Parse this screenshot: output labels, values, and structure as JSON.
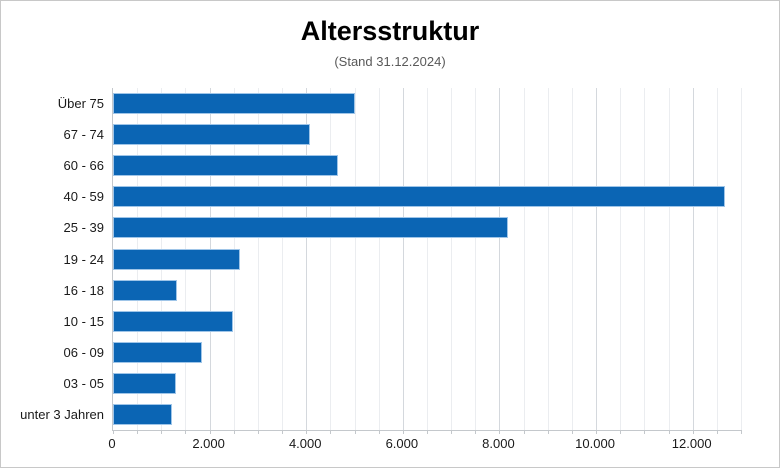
{
  "title": "Altersstruktur",
  "subtitle": "(Stand 31.12.2024)",
  "colors": {
    "bar": "#0b65b4",
    "bar_border": "#9fc5e8",
    "grid_minor": "#ebedf0",
    "grid_major": "#d4d8dd",
    "axis_line": "#c4c8cc",
    "chart_border": "#c8c8c8",
    "subtitle_text": "#595959",
    "label_text": "#1a1a1a"
  },
  "chart_data": {
    "type": "bar",
    "orientation": "horizontal",
    "title": "Altersstruktur",
    "subtitle": "(Stand 31.12.2024)",
    "categories": [
      "Über 75",
      "67 - 74",
      "60 - 66",
      "40 - 59",
      "25 - 39",
      "19 - 24",
      "16 - 18",
      "10 - 15",
      "06 - 09",
      "03 - 05",
      "unter 3 Jahren"
    ],
    "values": [
      5000,
      4070,
      4650,
      12670,
      8180,
      2630,
      1330,
      2490,
      1840,
      1300,
      1220
    ],
    "xlabel": "",
    "ylabel": "",
    "xlim": [
      0,
      13000
    ],
    "x_major_unit": 2000,
    "x_minor_unit": 500,
    "x_tick_labels": [
      "0",
      "2.000",
      "4.000",
      "6.000",
      "8.000",
      "10.000",
      "12.000"
    ],
    "grid": "vertical, minor every 500, major every 2000",
    "legend": "none",
    "data_labels": "none"
  }
}
